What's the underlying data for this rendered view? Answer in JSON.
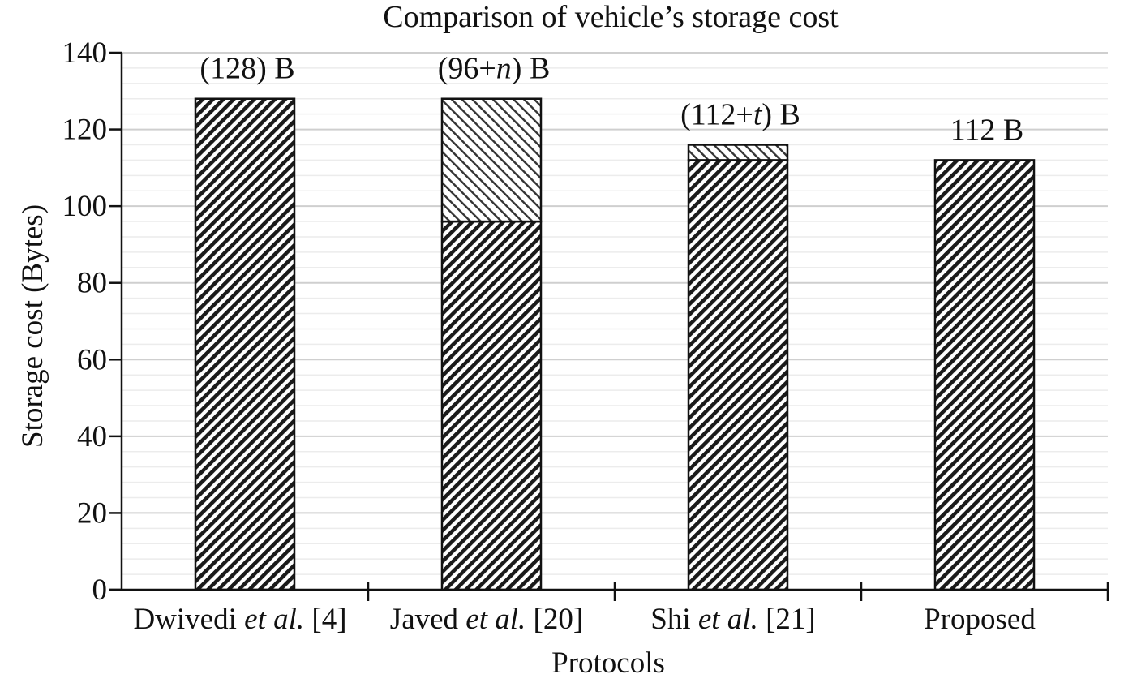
{
  "chart_data": {
    "type": "bar",
    "title": "Comparison of vehicle’s storage cost",
    "xlabel": "Protocols",
    "ylabel": "Storage cost (Bytes)",
    "ylim": [
      0,
      140
    ],
    "yticks": [
      0,
      20,
      40,
      60,
      80,
      100,
      120,
      140
    ],
    "grid": true,
    "categories": [
      [
        {
          "t": "Dwivedi "
        },
        {
          "t": "et al.",
          "i": true
        },
        {
          "t": " [4]"
        }
      ],
      [
        {
          "t": "Javed "
        },
        {
          "t": "et al.",
          "i": true
        },
        {
          "t": " [20]"
        }
      ],
      [
        {
          "t": "Shi "
        },
        {
          "t": "et al.",
          "i": true
        },
        {
          "t": " [21]"
        }
      ],
      [
        {
          "t": "Proposed"
        }
      ]
    ],
    "series": [
      {
        "values": [
          128,
          96,
          112,
          112
        ],
        "pattern": "dense-back-diagonal"
      },
      {
        "values": [
          0,
          32,
          4,
          0
        ],
        "pattern": "light-forward-diagonal"
      }
    ],
    "value_labels": [
      [
        {
          "t": "(128) B"
        }
      ],
      [
        {
          "t": "(96+"
        },
        {
          "t": "n",
          "i": true
        },
        {
          "t": ") B"
        }
      ],
      [
        {
          "t": "(112+"
        },
        {
          "t": "t",
          "i": true
        },
        {
          "t": ") B"
        }
      ],
      [
        {
          "t": "112 B"
        }
      ]
    ],
    "colors": {
      "bar_stroke": "#111111",
      "grid_major": "#cfcfcf",
      "grid_minor": "#ececec",
      "axis": "#111111"
    }
  }
}
